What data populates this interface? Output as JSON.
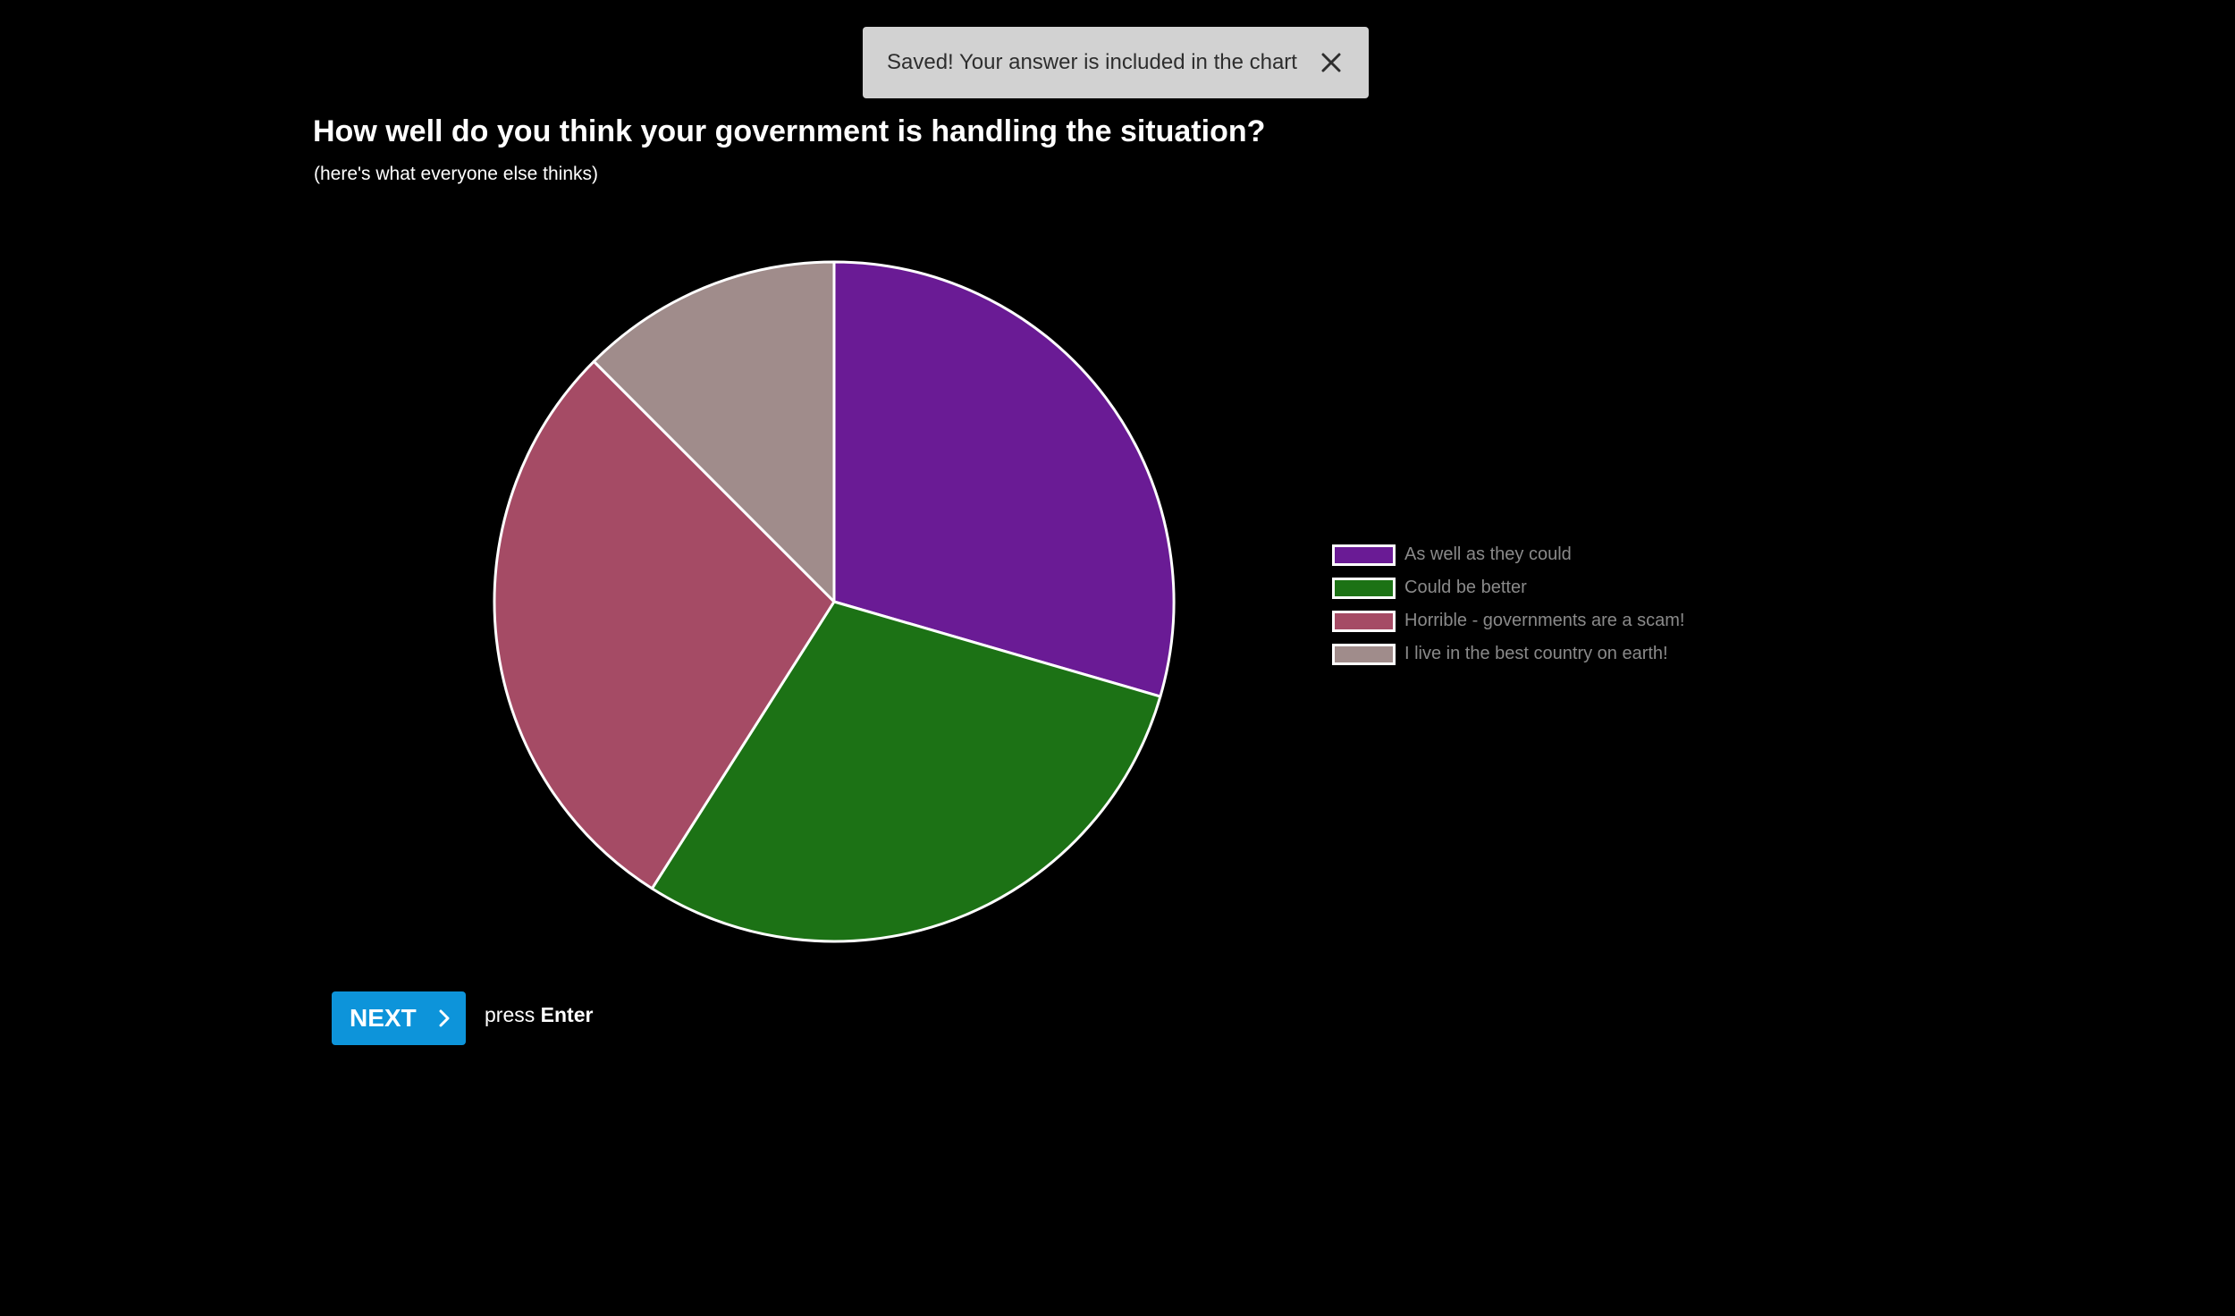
{
  "toast": {
    "message": "Saved! Your answer is included in the chart",
    "close_icon": "close-icon"
  },
  "question": {
    "title": "How well do you think your government is handling the situation?",
    "subtitle": "(here's what everyone else thinks)"
  },
  "chart_data": {
    "type": "pie",
    "categories": [
      "As well as they could",
      "Could be better",
      "Horrible - governments are a scam!",
      "I live in the best country on earth!"
    ],
    "values": [
      29.5,
      29.5,
      28.5,
      12.5
    ],
    "colors": [
      "#6a1b95",
      "#1c7215",
      "#a54b65",
      "#a08c8b"
    ],
    "start_angle": "top",
    "direction": "clockwise"
  },
  "next": {
    "label": "NEXT",
    "icon": "chevron-right-icon",
    "hint_prefix": "press",
    "hint_key": "Enter"
  },
  "colors": {
    "background": "#000000",
    "accent": "#0d94da",
    "toast_bg": "#d2d2d2"
  }
}
